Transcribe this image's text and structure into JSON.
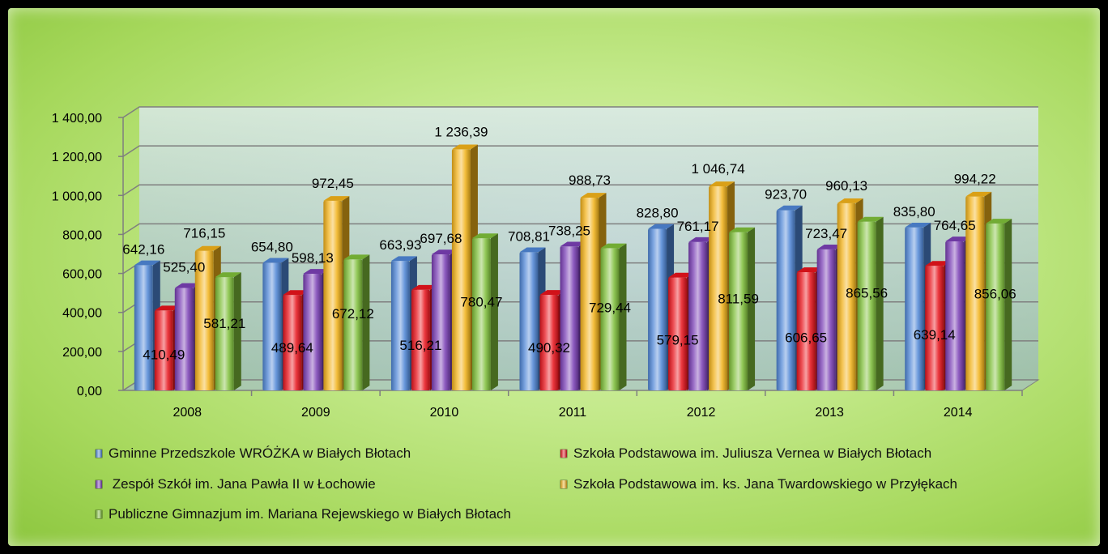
{
  "chart_data": {
    "type": "bar",
    "categories": [
      "2008",
      "2009",
      "2010",
      "2011",
      "2012",
      "2013",
      "2014"
    ],
    "ylim": [
      0,
      1400
    ],
    "y_ticks": [
      0,
      200,
      400,
      600,
      800,
      1000,
      1200,
      1400
    ],
    "y_tick_labels": [
      "0,00",
      "200,00",
      "400,00",
      "600,00",
      "800,00",
      "1 000,00",
      "1 200,00",
      "1 400,00"
    ],
    "grid": true,
    "legend_position": "bottom",
    "series": [
      {
        "name": "Gminne Przedszkole WRÓŻKA w Białych Błotach",
        "color": "#4f86d6",
        "values": [
          642.16,
          654.8,
          663.93,
          708.81,
          828.8,
          923.7,
          835.8
        ],
        "labels": [
          "642,16",
          "654,80",
          "663,93",
          "708,81",
          "828,80",
          "923,70",
          "835,80"
        ]
      },
      {
        "name": "Szkoła Podstawowa im. Juliusza Vernea w Białych Błotach",
        "color": "#e8141c",
        "values": [
          410.49,
          489.64,
          516.21,
          490.32,
          579.15,
          606.65,
          639.14
        ],
        "labels": [
          "410,49",
          "489,64",
          "516,21",
          "490,32",
          "579,15",
          "606,65",
          "639,14"
        ]
      },
      {
        "name": " Zespół Szkół im. Jana Pawła II w Łochowie",
        "color": "#7a3fb5",
        "values": [
          525.4,
          598.13,
          697.68,
          738.25,
          761.17,
          723.47,
          764.65
        ],
        "labels": [
          "525,40",
          "598,13",
          "697,68",
          "738,25",
          "761,17",
          "723,47",
          "764,65"
        ]
      },
      {
        "name": "Szkoła Podstawowa im. ks. Jana Twardowskiego w Przyłękach",
        "color": "#f2b21a",
        "values": [
          716.15,
          972.45,
          1236.39,
          988.73,
          1046.74,
          960.13,
          994.22
        ],
        "labels": [
          "716,15",
          "972,45",
          "1 236,39",
          "988,73",
          "1 046,74",
          "960,13",
          "994,22"
        ]
      },
      {
        "name": "Publiczne Gimnazjum im. Mariana Rejewskiego w Białych Błotach",
        "color": "#7fbf3a",
        "values": [
          581.21,
          672.12,
          780.47,
          729.44,
          811.59,
          865.56,
          856.06
        ],
        "labels": [
          "581,21",
          "672,12",
          "780,47",
          "729,44",
          "811,59",
          "865,56",
          "856,06"
        ]
      }
    ]
  },
  "legend": {
    "items": [
      "Gminne Przedszkole WRÓŻKA w Białych Błotach",
      "Szkoła Podstawowa im. Juliusza Vernea w Białych Błotach",
      " Zespół Szkół im. Jana Pawła II w Łochowie",
      "Szkoła Podstawowa im. ks. Jana Twardowskiego w Przyłękach",
      "Publiczne Gimnazjum im. Mariana Rejewskiego w Białych Błotach"
    ]
  }
}
